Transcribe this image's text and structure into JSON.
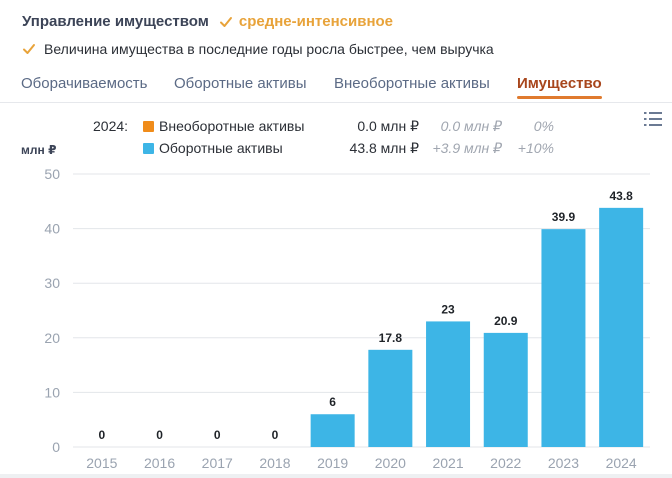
{
  "header": {
    "title": "Управление имуществом",
    "rating": "средне-интенсивное",
    "rating_color": "#e8a33a",
    "check_icon": "check-icon"
  },
  "note": {
    "text": "Величина имущества в последние годы росла быстрее, чем выручка",
    "check_color": "#e8a33a"
  },
  "tabs": [
    {
      "label": "Оборачиваемость",
      "active": false
    },
    {
      "label": "Оборотные активы",
      "active": false
    },
    {
      "label": "Внеоборотные активы",
      "active": false
    },
    {
      "label": "Имущество",
      "active": true
    }
  ],
  "legend": {
    "year": "2024:",
    "rows": [
      {
        "name": "Внеоборотные активы",
        "value": "0.0 млн ₽",
        "change": "0.0 млн ₽",
        "pct": "0%",
        "color": "#f08c1a"
      },
      {
        "name": "Оборотные активы",
        "value": "43.8 млн ₽",
        "change": "+3.9 млн ₽",
        "pct": "+10%",
        "color": "#3db5e6"
      }
    ]
  },
  "menu_icon": "list-menu-icon",
  "chart_data": {
    "type": "bar",
    "stacked": true,
    "unit_label": "млн ₽",
    "categories": [
      "2015",
      "2016",
      "2017",
      "2018",
      "2019",
      "2020",
      "2021",
      "2022",
      "2023",
      "2024"
    ],
    "series": [
      {
        "name": "Внеоборотные активы",
        "color": "#f08c1a",
        "values": [
          0,
          0,
          0,
          0,
          0,
          0,
          0,
          0,
          0,
          0
        ]
      },
      {
        "name": "Оборотные активы",
        "color": "#3db5e6",
        "values": [
          0,
          0,
          0,
          0,
          6,
          17.8,
          23,
          20.9,
          39.9,
          43.8
        ]
      }
    ],
    "data_labels": [
      "0",
      "0",
      "0",
      "0",
      "6",
      "17.8",
      "23",
      "20.9",
      "39.9",
      "43.8"
    ],
    "y_ticks": [
      "0",
      "10",
      "20",
      "30",
      "40",
      "50"
    ],
    "ylim": [
      0,
      50
    ],
    "grid": true
  }
}
